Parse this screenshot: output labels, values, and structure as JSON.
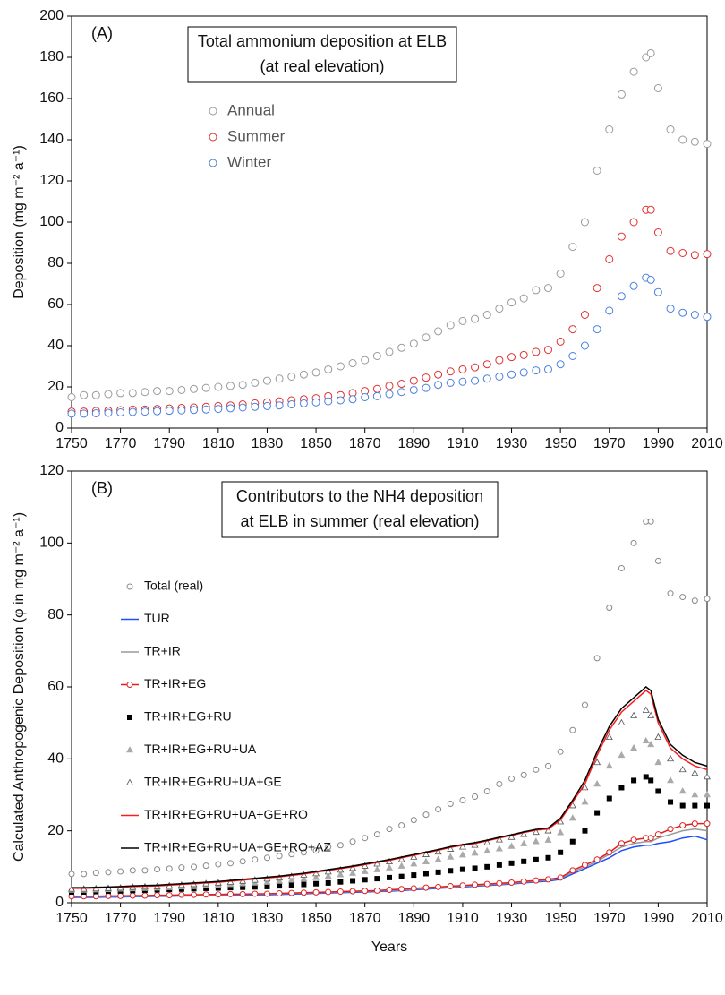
{
  "chart_data": [
    {
      "type": "scatter",
      "label": "(A)",
      "title": "Total ammonium deposition at ELB",
      "subtitle": "(at real elevation)",
      "ylabel": "Deposition (mg m⁻² a⁻¹)",
      "x": [
        1750,
        1755,
        1760,
        1765,
        1770,
        1775,
        1780,
        1785,
        1790,
        1795,
        1800,
        1805,
        1810,
        1815,
        1820,
        1825,
        1830,
        1835,
        1840,
        1845,
        1850,
        1855,
        1860,
        1865,
        1870,
        1875,
        1880,
        1885,
        1890,
        1895,
        1900,
        1905,
        1910,
        1915,
        1920,
        1925,
        1930,
        1935,
        1940,
        1945,
        1950,
        1955,
        1960,
        1965,
        1970,
        1975,
        1980,
        1985,
        1987,
        1990,
        1995,
        2000,
        2005,
        2010
      ],
      "xlim": [
        1750,
        2010
      ],
      "xticks": [
        1750,
        1770,
        1790,
        1810,
        1830,
        1850,
        1870,
        1890,
        1910,
        1930,
        1950,
        1970,
        1990,
        2010
      ],
      "ylim": [
        0,
        200
      ],
      "yticks": [
        0,
        20,
        40,
        60,
        80,
        100,
        120,
        140,
        160,
        180,
        200
      ],
      "series": [
        {
          "name": "Annual",
          "color": "#9a9a9a",
          "marker": "circle",
          "line": false,
          "values": [
            15,
            16,
            16,
            16.5,
            17,
            17,
            17.5,
            18,
            18,
            18.5,
            19,
            19.5,
            20,
            20.5,
            21,
            22,
            23,
            24,
            25,
            26,
            27,
            28.5,
            30,
            31.5,
            33,
            35,
            37,
            39,
            41,
            44,
            47,
            50,
            52,
            53,
            55,
            58,
            61,
            63,
            67,
            68,
            75,
            88,
            100,
            125,
            145,
            162,
            173,
            180,
            182,
            165,
            145,
            140,
            139,
            138
          ]
        },
        {
          "name": "Summer",
          "color": "#e03030",
          "marker": "circle",
          "line": false,
          "values": [
            8,
            8,
            8.3,
            8.5,
            8.7,
            9,
            9,
            9.3,
            9.5,
            9.8,
            10,
            10.3,
            10.7,
            11,
            11.5,
            12,
            12.5,
            13,
            13.5,
            14,
            14.5,
            15.5,
            16,
            17,
            18,
            19,
            20.5,
            21.5,
            23,
            24.5,
            26,
            27.5,
            28.5,
            29.5,
            31,
            33,
            34.5,
            35.5,
            37,
            38,
            42,
            48,
            55,
            68,
            82,
            93,
            100,
            106,
            106,
            95,
            86,
            85,
            84,
            84.5
          ]
        },
        {
          "name": "Winter",
          "color": "#4a7fe0",
          "marker": "circle",
          "line": false,
          "values": [
            7,
            7,
            7.2,
            7.4,
            7.6,
            7.8,
            8,
            8.2,
            8.4,
            8.6,
            8.8,
            9,
            9.3,
            9.6,
            10,
            10.3,
            10.7,
            11,
            11.5,
            12,
            12.5,
            13,
            13.5,
            14,
            15,
            15.5,
            16.5,
            17.5,
            18.5,
            19.5,
            21,
            22,
            22.5,
            23,
            24,
            25,
            26,
            27,
            28,
            28.5,
            31,
            35,
            40,
            48,
            57,
            64,
            69,
            73,
            72,
            66,
            58,
            56,
            55,
            54
          ]
        }
      ]
    },
    {
      "type": "scatter",
      "label": "(B)",
      "title": "Contributors to the NH4 deposition",
      "subtitle": "at ELB in summer (real elevation)",
      "ylabel": "Calculated Anthropogenic Deposition (φ in mg m⁻² a⁻¹)",
      "xlabel": "Years",
      "x": [
        1750,
        1755,
        1760,
        1765,
        1770,
        1775,
        1780,
        1785,
        1790,
        1795,
        1800,
        1805,
        1810,
        1815,
        1820,
        1825,
        1830,
        1835,
        1840,
        1845,
        1850,
        1855,
        1860,
        1865,
        1870,
        1875,
        1880,
        1885,
        1890,
        1895,
        1900,
        1905,
        1910,
        1915,
        1920,
        1925,
        1930,
        1935,
        1940,
        1945,
        1950,
        1955,
        1960,
        1965,
        1970,
        1975,
        1980,
        1985,
        1987,
        1990,
        1995,
        2000,
        2005,
        2010
      ],
      "xlim": [
        1750,
        2010
      ],
      "xticks": [
        1750,
        1770,
        1790,
        1810,
        1830,
        1850,
        1870,
        1890,
        1910,
        1930,
        1950,
        1970,
        1990,
        2010
      ],
      "ylim": [
        0,
        120
      ],
      "yticks": [
        0,
        20,
        40,
        60,
        80,
        100,
        120
      ],
      "series": [
        {
          "name": "Total (real)",
          "color": "#888888",
          "marker": "circle",
          "line": false,
          "values": [
            8,
            8,
            8.3,
            8.5,
            8.7,
            9,
            9,
            9.3,
            9.5,
            9.8,
            10,
            10.3,
            10.7,
            11,
            11.5,
            12,
            12.5,
            13,
            13.5,
            14,
            14.5,
            15.5,
            16,
            17,
            18,
            19,
            20.5,
            21.5,
            23,
            24.5,
            26,
            27.5,
            28.5,
            29.5,
            31,
            33,
            34.5,
            35.5,
            37,
            38,
            42,
            48,
            55,
            68,
            82,
            93,
            100,
            106,
            106,
            95,
            86,
            85,
            84,
            84.5
          ]
        },
        {
          "name": "TUR",
          "color": "#1f4fff",
          "marker": "none",
          "line": true,
          "values": [
            1.5,
            1.5,
            1.5,
            1.6,
            1.6,
            1.7,
            1.7,
            1.8,
            1.8,
            1.9,
            1.9,
            2,
            2,
            2.1,
            2.1,
            2.2,
            2.2,
            2.3,
            2.4,
            2.5,
            2.6,
            2.7,
            2.8,
            2.9,
            3,
            3.1,
            3.2,
            3.4,
            3.6,
            3.8,
            4,
            4.2,
            4.4,
            4.6,
            4.8,
            5,
            5.2,
            5.5,
            5.8,
            6,
            6.5,
            8,
            9.5,
            11,
            12.5,
            14.5,
            15.5,
            16,
            16,
            16.5,
            17,
            18,
            18.5,
            17.5
          ]
        },
        {
          "name": "TR+IR",
          "color": "#999999",
          "marker": "none",
          "line": true,
          "values": [
            1.7,
            1.7,
            1.7,
            1.8,
            1.8,
            1.9,
            1.9,
            2,
            2,
            2.1,
            2.1,
            2.2,
            2.2,
            2.3,
            2.3,
            2.4,
            2.4,
            2.5,
            2.6,
            2.7,
            2.8,
            2.9,
            3,
            3.1,
            3.2,
            3.3,
            3.4,
            3.6,
            3.8,
            4,
            4.2,
            4.4,
            4.6,
            4.8,
            5,
            5.2,
            5.4,
            5.7,
            6,
            6.3,
            6.8,
            8.5,
            10,
            11.5,
            13.5,
            15.5,
            16.5,
            17,
            17,
            18,
            19,
            20,
            20.5,
            20
          ]
        },
        {
          "name": "TR+IR+EG",
          "color": "#e02020",
          "marker": "circle",
          "line": true,
          "values": [
            1.8,
            1.8,
            1.8,
            1.9,
            1.9,
            2,
            2,
            2.1,
            2.1,
            2.2,
            2.2,
            2.3,
            2.3,
            2.4,
            2.4,
            2.5,
            2.5,
            2.6,
            2.7,
            2.8,
            2.9,
            3,
            3.1,
            3.2,
            3.3,
            3.4,
            3.6,
            3.8,
            4,
            4.2,
            4.4,
            4.6,
            4.8,
            5,
            5.2,
            5.4,
            5.6,
            5.9,
            6.2,
            6.5,
            7,
            9,
            10.5,
            12,
            14,
            16.5,
            17.5,
            18,
            18,
            19,
            20.5,
            21.5,
            22,
            22
          ]
        },
        {
          "name": "TR+IR+EG+RU",
          "color": "#000000",
          "marker": "square",
          "line": false,
          "values": [
            3,
            3,
            3.1,
            3.2,
            3.3,
            3.4,
            3.5,
            3.6,
            3.7,
            3.8,
            3.9,
            4,
            4.1,
            4.2,
            4.3,
            4.4,
            4.5,
            4.7,
            4.9,
            5.1,
            5.3,
            5.5,
            5.8,
            6.1,
            6.4,
            6.7,
            7,
            7.3,
            7.7,
            8.1,
            8.5,
            8.9,
            9.3,
            9.6,
            10,
            10.5,
            11,
            11.5,
            12,
            12.5,
            14,
            17,
            20,
            25,
            29,
            32,
            34,
            35,
            34,
            31,
            28,
            27,
            27,
            27
          ]
        },
        {
          "name": "TR+IR+EG+RU+UA",
          "color": "#aaaaaa",
          "marker": "triangle",
          "line": false,
          "values": [
            3.5,
            3.5,
            3.6,
            3.7,
            3.8,
            3.9,
            4,
            4.1,
            4.2,
            4.4,
            4.5,
            4.7,
            4.9,
            5.1,
            5.3,
            5.5,
            5.7,
            6,
            6.3,
            6.6,
            7,
            7.4,
            7.8,
            8.2,
            8.7,
            9.2,
            9.7,
            10.2,
            10.8,
            11.4,
            12,
            12.7,
            13.3,
            13.8,
            14.4,
            15,
            15.7,
            16.4,
            17,
            17.4,
            19.5,
            23.5,
            28,
            33,
            38,
            41,
            43,
            45,
            44,
            39,
            34,
            31,
            30,
            30
          ]
        },
        {
          "name": "TR+IR+EG+RU+UA+GE",
          "color": "#555555",
          "marker": "open-triangle",
          "line": false,
          "values": [
            3.8,
            3.8,
            3.9,
            4,
            4.1,
            4.3,
            4.4,
            4.5,
            4.7,
            4.9,
            5.1,
            5.3,
            5.5,
            5.7,
            6,
            6.3,
            6.6,
            6.9,
            7.3,
            7.7,
            8.1,
            8.6,
            9.1,
            9.6,
            10.2,
            10.8,
            11.4,
            12,
            12.7,
            13.4,
            14.1,
            14.9,
            15.5,
            16,
            16.7,
            17.5,
            18.2,
            19,
            19.6,
            20,
            22.5,
            27,
            32,
            39,
            46,
            50,
            52,
            53.5,
            52,
            46,
            40,
            37,
            36,
            35
          ]
        },
        {
          "name": "TR+IR+EG+RU+UA+GE+RO",
          "color": "#ff1a1a",
          "marker": "none",
          "line": true,
          "values": [
            4,
            4,
            4.1,
            4.2,
            4.3,
            4.5,
            4.6,
            4.7,
            4.9,
            5.1,
            5.3,
            5.5,
            5.7,
            6,
            6.3,
            6.6,
            6.9,
            7.2,
            7.6,
            8,
            8.5,
            9,
            9.5,
            10,
            10.6,
            11.2,
            11.8,
            12.5,
            13.2,
            13.9,
            14.6,
            15.4,
            16,
            16.5,
            17.2,
            18,
            18.7,
            19.5,
            20.2,
            20.5,
            23,
            28,
            33,
            41,
            48,
            53,
            56,
            59,
            58,
            50,
            43,
            40,
            38,
            37
          ]
        },
        {
          "name": "TR+IR+EG+RU+UA+GE+RO+AZ",
          "color": "#000000",
          "marker": "none",
          "line": true,
          "values": [
            4.2,
            4.2,
            4.3,
            4.4,
            4.5,
            4.7,
            4.8,
            4.9,
            5.1,
            5.3,
            5.5,
            5.7,
            5.9,
            6.2,
            6.5,
            6.8,
            7.1,
            7.4,
            7.8,
            8.2,
            8.7,
            9.2,
            9.7,
            10.2,
            10.8,
            11.4,
            12,
            12.7,
            13.4,
            14.1,
            14.8,
            15.6,
            16.2,
            16.7,
            17.4,
            18.2,
            18.9,
            19.7,
            20.4,
            20.8,
            23.5,
            28.5,
            34,
            42,
            49,
            54,
            57,
            60,
            59,
            51,
            44,
            41,
            39,
            38
          ]
        }
      ]
    }
  ]
}
